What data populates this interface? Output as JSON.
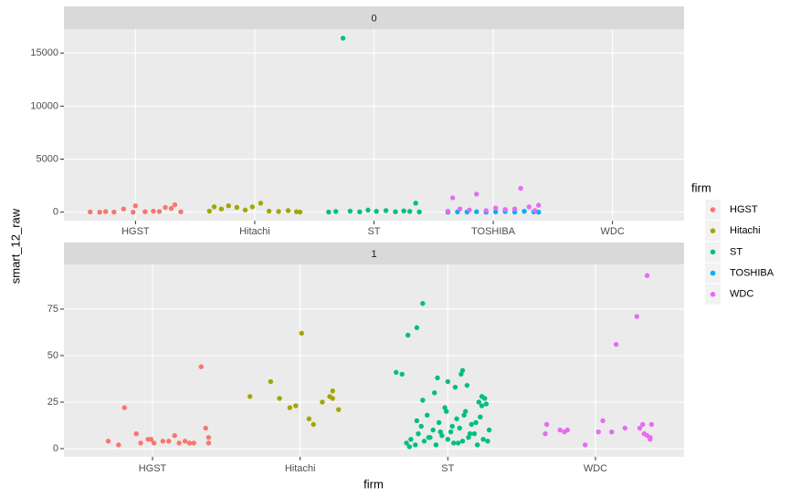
{
  "y_label": "smart_12_raw",
  "x_label": "firm",
  "legend_title": "firm",
  "chart_data": [
    {
      "type": "scatter",
      "title": "0",
      "xlim": [
        0.4,
        5.6
      ],
      "ylim": [
        -800,
        17250
      ],
      "xticks": [
        {
          "value": 1,
          "label": "HGST"
        },
        {
          "value": 2,
          "label": "Hitachi"
        },
        {
          "value": 3,
          "label": "ST"
        },
        {
          "value": 4,
          "label": "TOSHIBA"
        },
        {
          "value": 5,
          "label": "WDC"
        }
      ],
      "yticks": [
        0,
        5000,
        10000,
        15000
      ],
      "grid": true,
      "series": [
        {
          "name": "HGST",
          "color": "#F8766D",
          "x": [
            0.62,
            0.7,
            0.75,
            0.82,
            0.9,
            0.98,
            1.0,
            1.08,
            1.15,
            1.2,
            1.25,
            1.3,
            1.33,
            1.38
          ],
          "values": [
            20,
            0,
            50,
            10,
            300,
            0,
            600,
            40,
            100,
            60,
            450,
            350,
            700,
            30
          ]
        },
        {
          "name": "Hitachi",
          "color": "#A3A500",
          "x": [
            1.62,
            1.66,
            1.72,
            1.78,
            1.85,
            1.92,
            1.98,
            2.05,
            2.12,
            2.2,
            2.28,
            2.35,
            2.38
          ],
          "values": [
            100,
            500,
            300,
            600,
            450,
            200,
            500,
            850,
            100,
            60,
            150,
            40,
            10
          ]
        },
        {
          "name": "ST",
          "color": "#00BF7D",
          "x": [
            2.62,
            2.68,
            2.74,
            2.8,
            2.88,
            2.95,
            3.02,
            3.1,
            3.18,
            3.25,
            3.3,
            3.35,
            3.38
          ],
          "values": [
            10,
            60,
            16400,
            100,
            30,
            200,
            80,
            150,
            40,
            120,
            70,
            850,
            20
          ]
        },
        {
          "name": "TOSHIBA",
          "color": "#00B0F6",
          "x": [
            3.62,
            3.7,
            3.78,
            3.86,
            3.94,
            4.02,
            4.1,
            4.18,
            4.26,
            4.34,
            4.38
          ],
          "values": [
            0,
            20,
            10,
            40,
            0,
            30,
            60,
            10,
            80,
            20,
            0
          ]
        },
        {
          "name": "WDC",
          "color": "#E76BF3",
          "x": [
            3.62,
            3.66,
            3.72,
            3.8,
            3.86,
            3.94,
            4.02,
            4.1,
            4.18,
            4.23,
            4.3,
            4.35,
            4.38
          ],
          "values": [
            100,
            1350,
            300,
            200,
            1700,
            150,
            400,
            250,
            300,
            2250,
            500,
            150,
            650
          ]
        }
      ]
    },
    {
      "type": "scatter",
      "title": "1",
      "xlim": [
        0.4,
        4.6
      ],
      "ylim": [
        -4.4,
        99
      ],
      "xticks": [
        {
          "value": 1,
          "label": "HGST"
        },
        {
          "value": 2,
          "label": "Hitachi"
        },
        {
          "value": 3,
          "label": "ST"
        },
        {
          "value": 4,
          "label": "WDC"
        }
      ],
      "yticks": [
        0,
        25,
        50,
        75
      ],
      "grid": true,
      "series": [
        {
          "name": "HGST",
          "color": "#F8766D",
          "x": [
            0.7,
            0.77,
            0.81,
            0.89,
            0.92,
            0.97,
            0.99,
            1.01,
            1.07,
            1.11,
            1.15,
            1.18,
            1.22,
            1.25,
            1.28,
            1.33,
            1.36,
            1.38,
            1.38
          ],
          "values": [
            4,
            2,
            22,
            8,
            3,
            5,
            5,
            3,
            4,
            4,
            7,
            3,
            4,
            3,
            3,
            44,
            11,
            6,
            3
          ]
        },
        {
          "name": "Hitachi",
          "color": "#A3A500",
          "x": [
            1.66,
            1.8,
            1.86,
            1.93,
            1.97,
            2.01,
            2.06,
            2.09,
            2.15,
            2.2,
            2.22,
            2.22,
            2.26
          ],
          "values": [
            28,
            36,
            27,
            22,
            23,
            62,
            16,
            13,
            25,
            28,
            31,
            27,
            21
          ]
        },
        {
          "name": "ST",
          "color": "#00BF7D",
          "x": [
            2.72,
            2.75,
            2.78,
            2.8,
            2.82,
            2.84,
            2.86,
            2.88,
            2.9,
            2.92,
            2.94,
            2.96,
            2.98,
            3.0,
            3.02,
            3.04,
            3.06,
            3.08,
            3.1,
            3.12,
            3.14,
            3.16,
            3.18,
            3.2,
            3.22,
            3.24,
            3.26,
            3.28,
            2.65,
            2.73,
            2.69,
            2.83,
            2.79,
            2.93,
            3.0,
            3.05,
            3.09,
            3.13,
            3.1,
            3.21,
            3.25,
            3.23,
            2.74,
            2.79,
            2.83,
            2.87,
            2.91,
            2.95,
            2.99,
            3.03,
            3.07,
            3.11,
            3.15,
            3.19,
            3.23,
            3.27
          ],
          "values": [
            3,
            5,
            2,
            8,
            12,
            4,
            18,
            6,
            10,
            2,
            14,
            7,
            22,
            5,
            9,
            3,
            16,
            11,
            4,
            20,
            6,
            13,
            8,
            2,
            17,
            5,
            24,
            10,
            41,
            61,
            40,
            78,
            65,
            38,
            36,
            33,
            40,
            34,
            42,
            25,
            27,
            28,
            1,
            15,
            26,
            6,
            30,
            9,
            20,
            12,
            3,
            18,
            8,
            14,
            23,
            4
          ]
        },
        {
          "name": "WDC",
          "color": "#E76BF3",
          "x": [
            3.67,
            3.66,
            3.76,
            3.79,
            3.81,
            3.93,
            4.02,
            4.05,
            4.11,
            4.14,
            4.2,
            4.28,
            4.3,
            4.32,
            4.33,
            4.35,
            4.35,
            4.37,
            4.38,
            4.37
          ],
          "values": [
            13,
            8,
            10,
            9,
            10,
            2,
            9,
            15,
            9,
            56,
            11,
            71,
            11,
            13,
            8,
            93,
            7,
            5,
            13,
            6
          ]
        }
      ]
    }
  ]
}
